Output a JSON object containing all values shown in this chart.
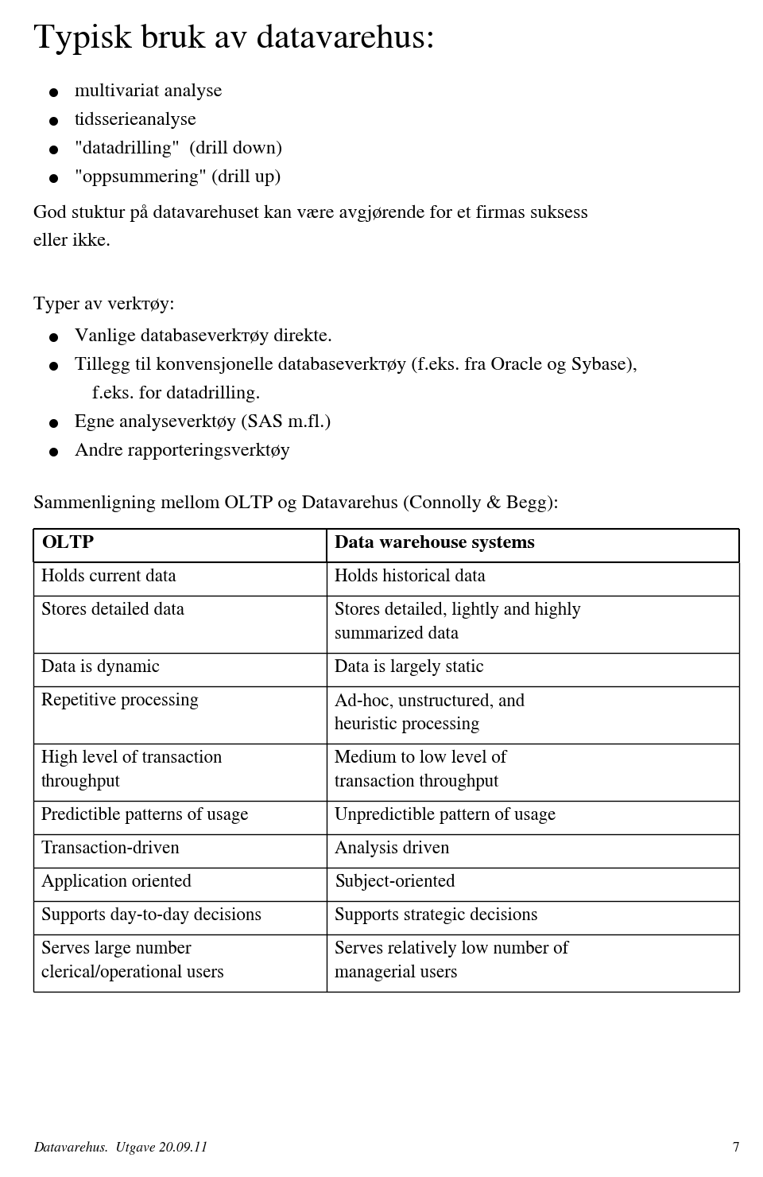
{
  "title": "Typisk bruk av datavarehus:",
  "title_fontsize": 32,
  "body_fontsize": 17.5,
  "bullet_items_1": [
    "multivariat analyse",
    "tidsserieanalyse",
    "\"datadrilling\"  (drill down)",
    "\"oppsummering\" (drill up)"
  ],
  "paragraph_1a": "God stuktur på datavarehuset kan være avgjørende for et firmas suksess",
  "paragraph_1b": "eller ikke.",
  "subheading": "Typer av verkтøy:",
  "bullet_items_2_line1": [
    "Vanlige databaseverkтøy direkte.",
    "Tillegg til konvensjonelle databaseverkтøy (f.eks. fra Oracle og Sybase),",
    "Egne analyseverktøy (SAS m.fl.)",
    "Andre rapporteringsverktøy"
  ],
  "bullet_items_2_line2": [
    "",
    "f.eks. for datadrilling.",
    "",
    ""
  ],
  "comparison_heading": "Sammenligning mellom OLTP og Datavarehus (Connolly & Begg):",
  "table_header": [
    "OLTP",
    "Data warehouse systems"
  ],
  "table_rows": [
    [
      "Holds current data",
      "Holds historical data"
    ],
    [
      "Stores detailed data",
      "Stores detailed, lightly and highly\nsummarized data"
    ],
    [
      "Data is dynamic",
      "Data is largely static"
    ],
    [
      "Repetitive processing",
      "Ad-hoc, unstructured, and\nheuristic processing"
    ],
    [
      "High level of transaction\nthroughput",
      "Medium to low level of\ntransaction throughput"
    ],
    [
      "Predictible patterns of usage",
      "Unpredictible pattern of usage"
    ],
    [
      "Transaction-driven",
      "Analysis driven"
    ],
    [
      "Application oriented",
      "Subject-oriented"
    ],
    [
      "Supports day-to-day decisions",
      "Supports strategic decisions"
    ],
    [
      "Serves large number\nclerical/operational users",
      "Serves relatively low number of\nmanagerial users"
    ]
  ],
  "footer": "Datavarehus.  Utgave 20.09.11",
  "page_number": "7",
  "bg_color": "#ffffff",
  "text_color": "#000000",
  "table_border_color": "#000000",
  "table_header_fontsize": 17.5,
  "table_body_fontsize": 16.5
}
